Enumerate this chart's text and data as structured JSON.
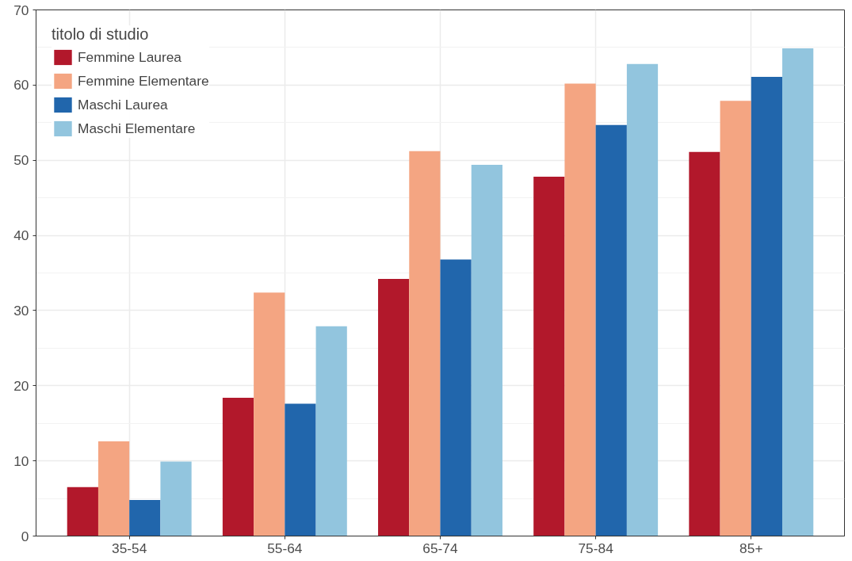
{
  "chart_data": {
    "type": "bar",
    "categories": [
      "35-54",
      "55-64",
      "65-74",
      "75-84",
      "85+"
    ],
    "legend_title": "titolo di studio",
    "series": [
      {
        "name": "Femmine Laurea",
        "color": "#b2182b",
        "values": [
          6.5,
          18.4,
          34.2,
          47.8,
          51.1
        ]
      },
      {
        "name": "Femmine Elementare",
        "color": "#f4a582",
        "values": [
          12.6,
          32.4,
          51.2,
          60.2,
          57.9
        ]
      },
      {
        "name": "Maschi Laurea",
        "color": "#2166ac",
        "values": [
          4.8,
          17.6,
          36.8,
          54.7,
          61.1
        ]
      },
      {
        "name": "Maschi Elementare",
        "color": "#92c5de",
        "values": [
          9.9,
          27.9,
          49.4,
          62.8,
          64.9
        ]
      }
    ],
    "ylim": [
      0,
      70
    ],
    "yticks": [
      0,
      10,
      20,
      30,
      40,
      50,
      60,
      70
    ],
    "grid": true,
    "legend": "top left"
  }
}
